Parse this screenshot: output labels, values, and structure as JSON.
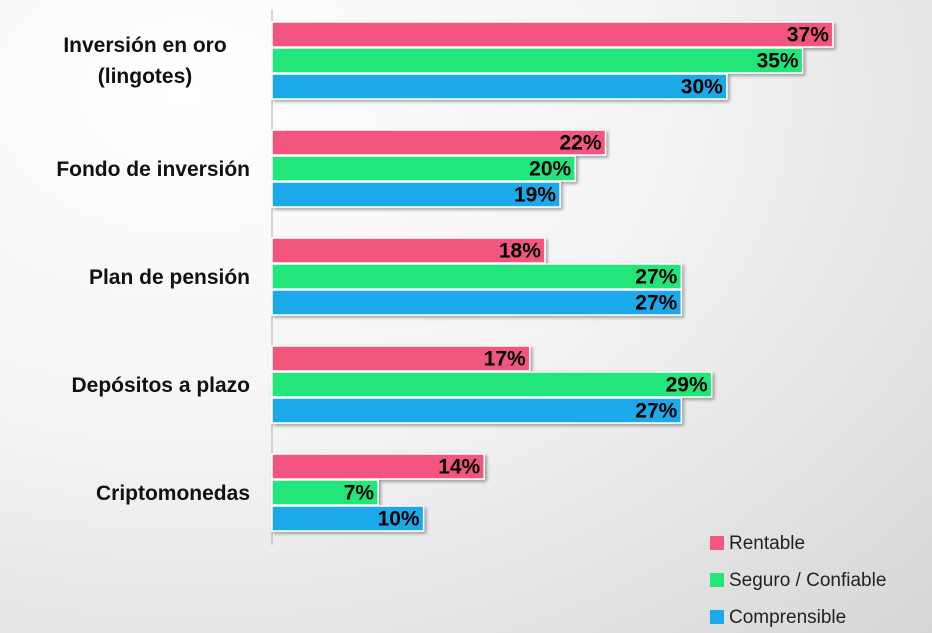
{
  "chart_data": {
    "type": "bar",
    "orientation": "horizontal",
    "categories": [
      "Inversión en oro (lingotes)",
      "Fondo de inversión",
      "Plan de pensión",
      "Depósitos a plazo",
      "Criptomonedas"
    ],
    "series": [
      {
        "name": "Rentable",
        "color": "#f2577f",
        "values": [
          37,
          22,
          18,
          17,
          14
        ],
        "value_labels": [
          "37%",
          "22%",
          "18%",
          "17%",
          "14%"
        ]
      },
      {
        "name": "Seguro / Confiable",
        "color": "#22e67a",
        "values": [
          35,
          20,
          27,
          29,
          7
        ],
        "value_labels": [
          "35%",
          "20%",
          "27%",
          "29%",
          "7%"
        ]
      },
      {
        "name": "Comprensible",
        "color": "#1ba9ea",
        "values": [
          30,
          19,
          27,
          27,
          10
        ],
        "value_labels": [
          "30%",
          "19%",
          "27%",
          "27%",
          "10%"
        ]
      }
    ],
    "legend": "bottom-right"
  }
}
